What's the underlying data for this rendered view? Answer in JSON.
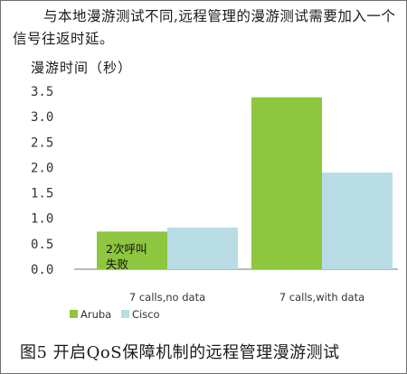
{
  "page": {
    "intro": "与本地漫游测试不同,远程管理的漫游测试需要加入一个信号往返时延。",
    "caption": "图5   开启QoS保障机制的远程管理漫游测试"
  },
  "chart_data": {
    "type": "bar",
    "ylabel": "漫游时间（秒）",
    "yticks": [
      "0.0",
      "0.5",
      "1.0",
      "1.5",
      "2.0",
      "2.5",
      "3.0",
      "3.5"
    ],
    "ylim": [
      0,
      3.5
    ],
    "categories": [
      "7 calls,no data",
      "7 calls,with data"
    ],
    "series": [
      {
        "name": "Aruba",
        "values": [
          0.74,
          3.38
        ],
        "color": "#8dc63f"
      },
      {
        "name": "Cisco",
        "values": [
          0.82,
          1.9
        ],
        "color": "#b8dde5"
      }
    ],
    "annotations": [
      {
        "lines": [
          "2次呼叫",
          "失败"
        ]
      }
    ],
    "grid": false,
    "legend_position": "bottom-left"
  }
}
